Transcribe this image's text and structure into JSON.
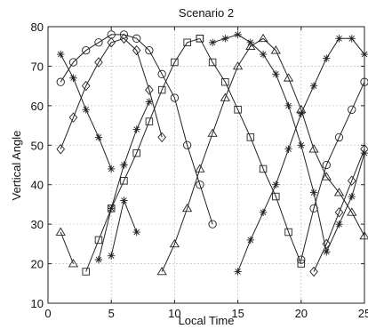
{
  "chart_data": {
    "type": "line",
    "title": "Scenario 2",
    "xlabel": "Local Time",
    "ylabel": "Vertical Angle",
    "xlim": [
      0,
      25
    ],
    "ylim": [
      10,
      80
    ],
    "xticks": [
      0,
      5,
      10,
      15,
      20,
      25
    ],
    "yticks": [
      10,
      20,
      30,
      40,
      50,
      60,
      70,
      80
    ],
    "grid": true,
    "series": [
      {
        "marker": "star",
        "x": [
          1,
          2,
          3,
          4,
          5
        ],
        "y": [
          73,
          67,
          59,
          52,
          44
        ]
      },
      {
        "marker": "triangle",
        "x": [
          1,
          2
        ],
        "y": [
          28,
          20
        ]
      },
      {
        "marker": "square",
        "x": [
          3,
          4,
          5,
          6,
          7,
          8,
          9,
          10,
          11,
          12
        ],
        "y": [
          18,
          26,
          34,
          41,
          48,
          56,
          64,
          71,
          76,
          77
        ]
      },
      {
        "marker": "circle",
        "x": [
          1,
          2,
          3,
          4,
          5,
          6,
          7,
          8,
          9,
          10,
          11,
          12,
          13
        ],
        "y": [
          66,
          71,
          74,
          76,
          78,
          78,
          77,
          74,
          68,
          62,
          50,
          40,
          30
        ]
      },
      {
        "marker": "diamond",
        "x": [
          1,
          2,
          3,
          4,
          5,
          6,
          7,
          8,
          9
        ],
        "y": [
          49,
          57,
          65,
          71,
          76,
          77,
          74,
          64,
          52
        ]
      },
      {
        "marker": "star",
        "x": [
          4,
          5,
          6,
          7,
          8
        ],
        "y": [
          21,
          34,
          45,
          54,
          61
        ]
      },
      {
        "marker": "star",
        "x": [
          5,
          6,
          7
        ],
        "y": [
          22,
          36,
          28
        ]
      },
      {
        "marker": "triangle",
        "x": [
          9,
          10,
          11,
          12,
          13,
          14,
          15,
          16,
          17,
          18,
          19,
          20,
          21,
          22,
          23,
          24,
          25
        ],
        "y": [
          18,
          25,
          34,
          44,
          53,
          62,
          70,
          75,
          77,
          74,
          67,
          59,
          49,
          42,
          38,
          33,
          27
        ]
      },
      {
        "marker": "square",
        "x": [
          12,
          13,
          14,
          15,
          16,
          17,
          18,
          19,
          20
        ],
        "y": [
          77,
          71,
          66,
          59,
          52,
          44,
          37,
          28,
          20
        ]
      },
      {
        "marker": "star",
        "x": [
          13,
          14,
          15,
          16,
          17,
          18,
          19,
          20,
          21,
          22,
          23,
          24,
          25
        ],
        "y": [
          76,
          77,
          78,
          76,
          73,
          68,
          60,
          50,
          38,
          23,
          30,
          37,
          48
        ]
      },
      {
        "marker": "star",
        "x": [
          15,
          16,
          17,
          18,
          19,
          20,
          21,
          22,
          23,
          24,
          25
        ],
        "y": [
          18,
          26,
          33,
          40,
          49,
          58,
          65,
          72,
          77,
          77,
          73
        ]
      },
      {
        "marker": "diamond",
        "x": [
          21,
          22,
          23,
          24,
          25
        ],
        "y": [
          18,
          25,
          33,
          41,
          49
        ]
      },
      {
        "marker": "circle",
        "x": [
          20,
          21,
          22,
          23,
          24,
          25
        ],
        "y": [
          21,
          34,
          45,
          52,
          59,
          66
        ]
      }
    ]
  }
}
